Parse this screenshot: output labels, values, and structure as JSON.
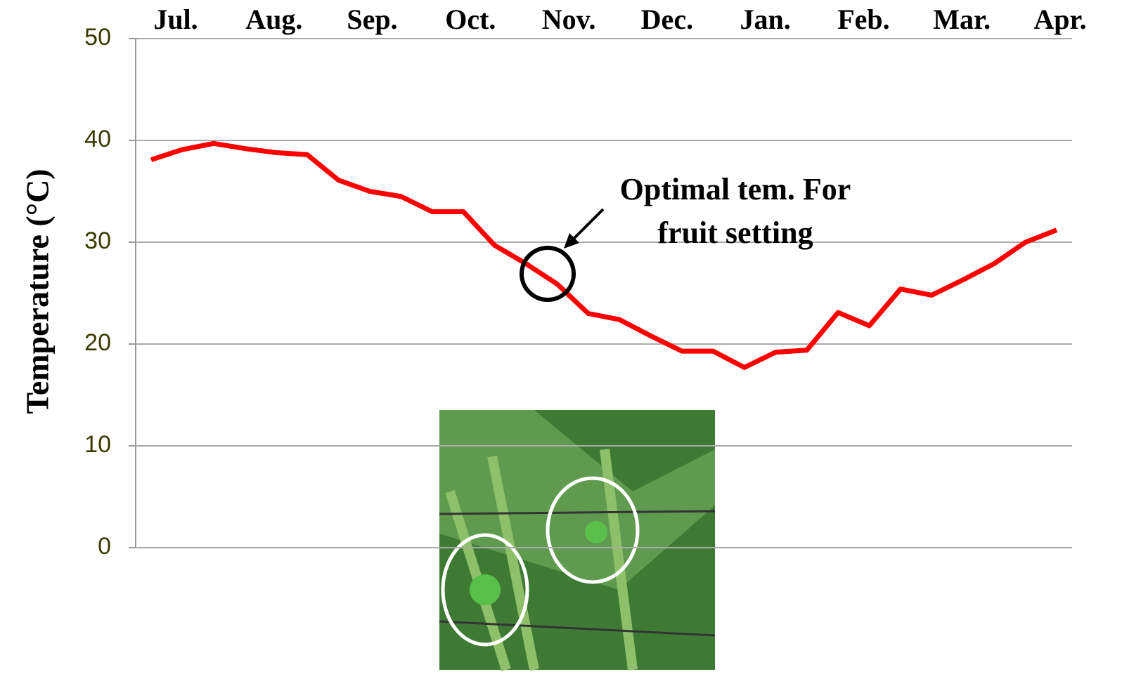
{
  "chart_data": {
    "type": "line",
    "y_label": "Temperature (°C)",
    "top_labels": [
      "Jul.",
      "Aug.",
      "Sep.",
      "Oct.",
      "Nov.",
      "Dec.",
      "Jan.",
      "Feb.",
      "Mar.",
      "Apr."
    ],
    "categories": [
      null,
      null,
      null,
      null,
      null,
      null,
      null,
      null,
      null,
      null,
      null,
      null,
      null,
      null,
      null,
      null,
      null,
      null,
      null,
      null,
      null,
      null,
      null,
      null,
      null,
      null,
      null,
      null,
      null,
      null
    ],
    "series": [
      {
        "color": "#ff0000",
        "values": [
          38.1,
          39.1,
          39.7,
          39.2,
          38.8,
          38.6,
          36.1,
          35.0,
          34.5,
          33.0,
          33.0,
          29.7,
          27.9,
          25.9,
          23.0,
          22.4,
          20.8,
          19.3,
          19.3,
          17.7,
          19.2,
          19.4,
          23.1,
          21.8,
          25.4,
          24.8,
          26.3,
          27.9,
          30.0,
          31.2
        ]
      }
    ],
    "ylim": [
      0,
      50
    ],
    "yticks": [
      0,
      10,
      20,
      30,
      40,
      50
    ],
    "grid": true,
    "annotation": [
      "Optimal tem. For",
      "fruit setting"
    ]
  }
}
